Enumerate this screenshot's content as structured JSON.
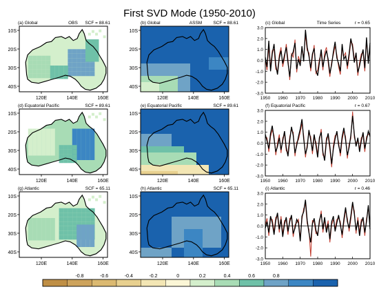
{
  "figure_title": "First SVD Mode (1950-2010)",
  "rows": [
    {
      "obs_label": "(a) Global",
      "obs_center": "OBS",
      "obs_scf": "SCF = 88.61",
      "assm_label": "(b) Global",
      "assm_center": "ASSM",
      "assm_scf": "SCF = 88.61",
      "ts_label": "(c) Global",
      "ts_center": "Time Series",
      "ts_r": "r = 0.65"
    },
    {
      "obs_label": "(d) Equatorial Pacific",
      "obs_center": "",
      "obs_scf": "SCF = 89.61",
      "assm_label": "(e) Equatorial Pacific",
      "assm_center": "",
      "assm_scf": "SCF = 89.61",
      "ts_label": "(f) Equatorial Pacific",
      "ts_center": "",
      "ts_r": "r = 0.67"
    },
    {
      "obs_label": "(g) Atlantic",
      "obs_center": "",
      "obs_scf": "SCF = 65.11",
      "assm_label": "(h) Atlantic",
      "assm_center": "",
      "assm_scf": "SCF = 65.11",
      "ts_label": "(i) Atlantic",
      "ts_center": "",
      "ts_r": "r = 0.46"
    }
  ],
  "map_axes": {
    "lat_ticks": [
      "10S",
      "20S",
      "30S",
      "40S"
    ],
    "lon_ticks_obs": [
      "120E",
      "140E",
      "160E"
    ],
    "lon_ticks_assm": [
      "120E",
      "140E",
      "160E"
    ]
  },
  "ts_axes": {
    "y_ticks": [
      "3.0",
      "2.0",
      "1.0",
      "0.0",
      "-1.0",
      "-2.0",
      "-3.0"
    ],
    "x_ticks": [
      "1950",
      "1960",
      "1970",
      "1980",
      "1990",
      "2000",
      "2010"
    ]
  },
  "colorbar": {
    "labels": [
      "-0.8",
      "-0.6",
      "-0.4",
      "-0.2",
      "0",
      "0.2",
      "0.4",
      "0.6",
      "0.8"
    ],
    "colors": [
      "#bf8f45",
      "#cda35c",
      "#dbb971",
      "#e8d08f",
      "#f3e6b4",
      "#fbf6d6",
      "#d4efcc",
      "#a8dcb5",
      "#6fc1a8",
      "#6fa3c6",
      "#3c86c3",
      "#1a62ad"
    ]
  },
  "map_colors": {
    "ocean": "#1a62ad",
    "ocean_mid": "#3c86c3",
    "land_light": "#d4efcc",
    "land_mid": "#a8dcb5",
    "land_teal": "#6fc1a8",
    "land_blue": "#6fa3c6",
    "south_yellow": "#f3e6b4",
    "south_orange": "#e8d08f"
  },
  "chart_data": [
    {
      "type": "line",
      "panel": "(c) Global",
      "x": [
        1950,
        1951,
        1952,
        1953,
        1954,
        1955,
        1956,
        1957,
        1958,
        1959,
        1960,
        1961,
        1962,
        1963,
        1964,
        1965,
        1966,
        1967,
        1968,
        1969,
        1970,
        1971,
        1972,
        1973,
        1974,
        1975,
        1976,
        1977,
        1978,
        1979,
        1980,
        1981,
        1982,
        1983,
        1984,
        1985,
        1986,
        1987,
        1988,
        1989,
        1990,
        1991,
        1992,
        1993,
        1994,
        1995,
        1996,
        1997,
        1998,
        1999,
        2000,
        2001,
        2002,
        2003,
        2004,
        2005,
        2006,
        2007,
        2008,
        2009,
        2010
      ],
      "ylim": [
        -3.0,
        3.0
      ],
      "xlim": [
        1950,
        2010
      ],
      "series": [
        {
          "values": [
            0.3,
            -0.6,
            1.8,
            -1.0,
            0.6,
            1.5,
            -0.4,
            -1.3,
            0.2,
            0.9,
            -0.3,
            0.5,
            1.2,
            -0.2,
            -1.5,
            0.4,
            0.8,
            1.6,
            -0.8,
            0.1,
            -0.5,
            1.3,
            -0.1,
            2.8,
            1.2,
            0.4,
            -0.7,
            0.6,
            1.1,
            -0.9,
            -1.4,
            -0.2,
            1.0,
            -0.6,
            0.3,
            0.9,
            0.1,
            -1.2,
            -0.4,
            0.8,
            1.7,
            0.2,
            -0.3,
            -1.0,
            1.5,
            0.1,
            0.4,
            -0.5,
            0.6,
            2.0,
            1.2,
            -0.2,
            0.7,
            -1.1,
            -0.5,
            0.3,
            1.0,
            -0.7,
            2.1,
            -0.3,
            1.6
          ]
        },
        {
          "values": [
            0.1,
            -0.9,
            1.2,
            -0.6,
            0.9,
            1.0,
            -0.8,
            -1.0,
            0.5,
            1.2,
            -0.6,
            0.2,
            1.5,
            0.1,
            -1.8,
            0.6,
            0.3,
            1.9,
            -1.1,
            0.4,
            -0.2,
            1.0,
            0.3,
            2.3,
            0.9,
            0.7,
            -1.0,
            0.3,
            1.4,
            -1.2,
            -0.9,
            0.1,
            0.6,
            -0.9,
            0.7,
            1.2,
            -0.2,
            -1.5,
            -0.1,
            0.5,
            1.3,
            0.5,
            -0.6,
            -1.3,
            1.1,
            0.4,
            0.7,
            -0.8,
            0.3,
            1.7,
            1.5,
            0.1,
            0.4,
            -1.4,
            -0.2,
            0.6,
            0.7,
            -1.0,
            1.8,
            0.0,
            1.2
          ]
        }
      ]
    },
    {
      "type": "line",
      "panel": "(f) Equatorial Pacific",
      "x": [
        1950,
        1951,
        1952,
        1953,
        1954,
        1955,
        1956,
        1957,
        1958,
        1959,
        1960,
        1961,
        1962,
        1963,
        1964,
        1965,
        1966,
        1967,
        1968,
        1969,
        1970,
        1971,
        1972,
        1973,
        1974,
        1975,
        1976,
        1977,
        1978,
        1979,
        1980,
        1981,
        1982,
        1983,
        1984,
        1985,
        1986,
        1987,
        1988,
        1989,
        1990,
        1991,
        1992,
        1993,
        1994,
        1995,
        1996,
        1997,
        1998,
        1999,
        2000,
        2001,
        2002,
        2003,
        2004,
        2005,
        2006,
        2007,
        2008,
        2009,
        2010
      ],
      "ylim": [
        -3.0,
        3.0
      ],
      "xlim": [
        1950,
        2010
      ],
      "series": [
        {
          "values": [
            0.8,
            0.2,
            -0.5,
            0.9,
            1.6,
            0.4,
            -0.8,
            -0.3,
            0.5,
            -0.6,
            0.2,
            1.1,
            -0.4,
            -1.2,
            0.3,
            1.5,
            0.7,
            -0.9,
            -0.2,
            0.6,
            1.3,
            2.2,
            0.4,
            -1.0,
            -0.4,
            1.2,
            0.3,
            -0.7,
            0.8,
            -0.2,
            -1.3,
            0.5,
            1.0,
            -0.8,
            -1.6,
            0.2,
            0.9,
            -0.3,
            -1.9,
            -0.5,
            0.4,
            1.1,
            -0.2,
            -0.9,
            0.6,
            1.4,
            0.3,
            -1.1,
            -0.4,
            0.7,
            2.5,
            0.8,
            -0.3,
            0.5,
            -0.8,
            0.2,
            1.0,
            -0.5,
            0.3,
            1.1,
            0.6
          ]
        },
        {
          "values": [
            0.5,
            0.5,
            -0.8,
            0.6,
            1.2,
            0.7,
            -1.1,
            0.0,
            0.8,
            -0.9,
            0.5,
            0.8,
            -0.7,
            -0.9,
            0.6,
            1.2,
            1.0,
            -1.2,
            0.1,
            0.3,
            1.0,
            1.8,
            0.7,
            -1.3,
            -0.1,
            0.9,
            0.6,
            -1.0,
            0.5,
            0.1,
            -1.0,
            0.2,
            1.3,
            -1.1,
            -1.3,
            0.5,
            0.6,
            -0.6,
            -2.2,
            -0.2,
            0.7,
            0.8,
            0.1,
            -1.2,
            0.3,
            1.1,
            0.6,
            -1.4,
            -0.1,
            0.4,
            2.9,
            0.5,
            0.0,
            0.2,
            -0.5,
            0.5,
            0.7,
            -0.8,
            0.6,
            0.8,
            0.9
          ]
        }
      ]
    },
    {
      "type": "line",
      "panel": "(i) Atlantic",
      "x": [
        1950,
        1951,
        1952,
        1953,
        1954,
        1955,
        1956,
        1957,
        1958,
        1959,
        1960,
        1961,
        1962,
        1963,
        1964,
        1965,
        1966,
        1967,
        1968,
        1969,
        1970,
        1971,
        1972,
        1973,
        1974,
        1975,
        1976,
        1977,
        1978,
        1979,
        1980,
        1981,
        1982,
        1983,
        1984,
        1985,
        1986,
        1987,
        1988,
        1989,
        1990,
        1991,
        1992,
        1993,
        1994,
        1995,
        1996,
        1997,
        1998,
        1999,
        2000,
        2001,
        2002,
        2003,
        2004,
        2005,
        2006,
        2007,
        2008,
        2009,
        2010
      ],
      "ylim": [
        -3.0,
        3.0
      ],
      "xlim": [
        1950,
        2010
      ],
      "series": [
        {
          "values": [
            -0.2,
            0.4,
            -0.6,
            0.9,
            0.3,
            -0.8,
            0.5,
            1.2,
            -0.3,
            0.6,
            -1.0,
            0.2,
            0.8,
            -0.5,
            0.4,
            1.0,
            -0.7,
            -0.2,
            0.6,
            0.3,
            -1.4,
            0.9,
            1.3,
            2.4,
            0.5,
            -0.6,
            -1.5,
            0.2,
            0.7,
            -0.4,
            -0.9,
            0.5,
            1.1,
            -0.3,
            0.8,
            -0.6,
            0.2,
            -1.2,
            0.4,
            0.9,
            -0.5,
            0.3,
            1.0,
            0.1,
            -0.8,
            0.6,
            1.7,
            0.4,
            -0.2,
            0.9,
            2.2,
            1.1,
            -0.4,
            0.5,
            -0.9,
            0.3,
            0.8,
            -0.6,
            0.4,
            1.9,
            -0.3
          ]
        },
        {
          "values": [
            0.1,
            0.7,
            -0.9,
            0.6,
            0.6,
            -0.5,
            0.8,
            0.9,
            -0.6,
            0.9,
            -0.7,
            0.5,
            0.5,
            -0.8,
            0.7,
            0.7,
            -1.0,
            0.1,
            0.3,
            0.6,
            -1.1,
            0.6,
            1.6,
            2.0,
            0.2,
            -0.3,
            -2.8,
            0.5,
            0.4,
            -0.7,
            -0.6,
            0.2,
            1.4,
            -0.6,
            0.5,
            -0.3,
            0.5,
            -1.5,
            0.1,
            0.6,
            -0.2,
            0.6,
            0.7,
            0.4,
            -1.1,
            0.3,
            1.4,
            0.7,
            -0.5,
            0.6,
            1.9,
            1.4,
            -0.7,
            0.8,
            -0.6,
            0.6,
            0.5,
            -0.9,
            0.7,
            1.6,
            0.0
          ]
        }
      ]
    }
  ],
  "series_colors": [
    "#000000",
    "#c0392b"
  ]
}
